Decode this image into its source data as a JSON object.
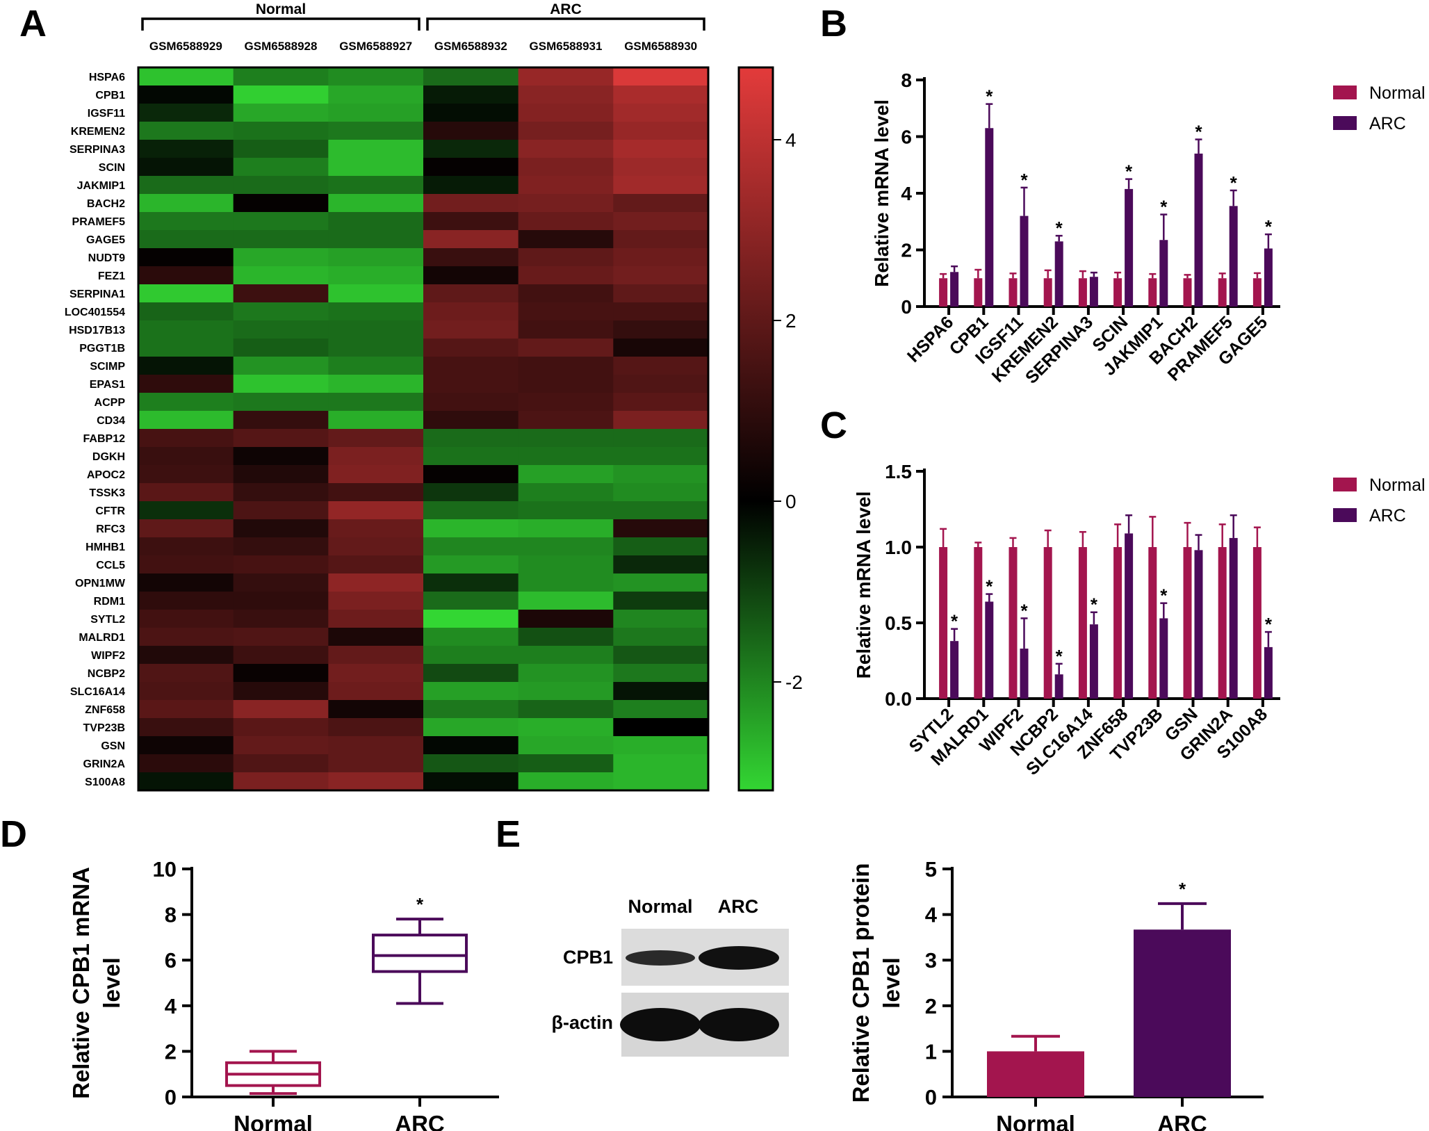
{
  "colors": {
    "normal": "#a3154e",
    "arc": "#4b0a5a",
    "heat_low": "#33d633",
    "heat_mid": "#000000",
    "heat_high": "#e33b3b"
  },
  "chart_data": [
    {
      "panel": "A",
      "type": "heatmap",
      "groups": [
        {
          "label": "Normal",
          "columns": [
            "GSM6588929",
            "GSM6588928",
            "GSM6588927"
          ]
        },
        {
          "label": "ARC",
          "columns": [
            "GSM6588932",
            "GSM6588931",
            "GSM6588930"
          ]
        }
      ],
      "columns": [
        "GSM6588929",
        "GSM6588928",
        "GSM6588927",
        "GSM6588932",
        "GSM6588931",
        "GSM6588930"
      ],
      "rows": [
        "HSPA6",
        "CPB1",
        "IGSF11",
        "KREMEN2",
        "SERPINA3",
        "SCIN",
        "JAKMIP1",
        "BACH2",
        "PRAMEF5",
        "GAGE5",
        "NUDT9",
        "FEZ1",
        "SERPINA1",
        "LOC401554",
        "HSD17B13",
        "PGGT1B",
        "SCIMP",
        "EPAS1",
        "ACPP",
        "CD34",
        "FABP12",
        "DGKH",
        "APOC2",
        "TSSK3",
        "CFTR",
        "RFC3",
        "HMHB1",
        "CCL5",
        "OPN1MW",
        "RDM1",
        "SYTL2",
        "MALRD1",
        "WIPF2",
        "NCBP2",
        "SLC16A14",
        "ZNF658",
        "TVP23B",
        "GSN",
        "GRIN2A",
        "S100A8"
      ],
      "values": [
        [
          -2.9,
          -1.9,
          -2.1,
          -1.6,
          3.2,
          4.6
        ],
        [
          -0.1,
          -3.1,
          -2.5,
          -0.4,
          2.9,
          3.6
        ],
        [
          -0.6,
          -2.5,
          -2.4,
          -0.2,
          2.8,
          3.4
        ],
        [
          -1.8,
          -1.7,
          -1.8,
          0.8,
          2.5,
          3.2
        ],
        [
          -0.5,
          -1.4,
          -2.8,
          -0.6,
          2.9,
          3.5
        ],
        [
          -0.3,
          -1.9,
          -2.8,
          0.1,
          2.6,
          3.3
        ],
        [
          -1.6,
          -1.6,
          -1.7,
          -0.4,
          2.7,
          3.4
        ],
        [
          -2.7,
          0.1,
          -2.7,
          2.4,
          2.5,
          2.1
        ],
        [
          -1.8,
          -1.8,
          -1.6,
          1.3,
          2.2,
          2.4
        ],
        [
          -1.6,
          -1.6,
          -1.6,
          2.9,
          0.8,
          2.1
        ],
        [
          0.1,
          -2.5,
          -2.4,
          1.2,
          2.0,
          2.3
        ],
        [
          0.9,
          -2.7,
          -2.6,
          0.4,
          2.2,
          2.4
        ],
        [
          -3.0,
          1.3,
          -2.9,
          2.0,
          1.4,
          2.0
        ],
        [
          -1.5,
          -1.8,
          -1.7,
          2.3,
          1.5,
          1.5
        ],
        [
          -1.7,
          -1.6,
          -1.6,
          2.4,
          1.4,
          1.1
        ],
        [
          -1.7,
          -1.4,
          -1.6,
          1.8,
          2.1,
          0.5
        ],
        [
          -0.3,
          -2.2,
          -1.9,
          1.5,
          1.4,
          1.8
        ],
        [
          1.0,
          -2.9,
          -2.7,
          1.5,
          1.4,
          1.7
        ],
        [
          -1.9,
          -1.8,
          -1.8,
          1.4,
          1.5,
          1.9
        ],
        [
          -2.8,
          1.1,
          -2.6,
          1.0,
          1.6,
          2.6
        ],
        [
          1.5,
          1.8,
          2.1,
          -1.6,
          -1.6,
          -1.6
        ],
        [
          1.2,
          0.3,
          2.6,
          -1.7,
          -1.7,
          -1.7
        ],
        [
          1.3,
          0.7,
          2.7,
          0.1,
          -2.4,
          -2.2
        ],
        [
          1.9,
          1.1,
          1.4,
          -0.8,
          -1.9,
          -2.1
        ],
        [
          -0.7,
          1.6,
          3.1,
          -1.6,
          -1.7,
          -1.7
        ],
        [
          2.0,
          0.7,
          2.2,
          -2.7,
          -2.6,
          0.8
        ],
        [
          1.3,
          1.1,
          2.1,
          -2.0,
          -2.0,
          -1.4
        ],
        [
          1.4,
          1.5,
          1.8,
          -2.3,
          -2.1,
          -0.6
        ],
        [
          0.4,
          1.1,
          3.0,
          -0.7,
          -2.1,
          -2.2
        ],
        [
          1.0,
          1.0,
          2.6,
          -1.6,
          -2.8,
          -0.9
        ],
        [
          1.4,
          1.2,
          2.3,
          -3.2,
          0.6,
          -2.0
        ],
        [
          1.6,
          1.7,
          0.6,
          -2.1,
          -1.2,
          -1.8
        ],
        [
          0.7,
          1.3,
          2.1,
          -1.9,
          -1.9,
          -1.3
        ],
        [
          1.7,
          0.2,
          2.4,
          -1.1,
          -2.2,
          -1.8
        ],
        [
          1.6,
          0.8,
          2.3,
          -2.4,
          -2.3,
          -0.3
        ],
        [
          1.9,
          2.9,
          0.4,
          -1.8,
          -1.5,
          -1.9
        ],
        [
          1.2,
          1.9,
          1.6,
          -2.5,
          -2.6,
          0.0
        ],
        [
          0.3,
          2.1,
          2.0,
          -0.1,
          -2.5,
          -2.6
        ],
        [
          0.9,
          1.7,
          2.0,
          -1.3,
          -1.4,
          -2.7
        ],
        [
          -0.3,
          2.6,
          2.9,
          -0.2,
          -2.6,
          -2.7
        ]
      ],
      "color_scale": {
        "min": -3.2,
        "max": 4.8,
        "ticks": [
          -2,
          0,
          2,
          4
        ]
      }
    },
    {
      "panel": "B",
      "type": "bar",
      "ylabel": "Relative mRNA level",
      "ylim": [
        0,
        8
      ],
      "yticks": [
        0,
        2,
        4,
        6,
        8
      ],
      "legend": "right",
      "categories": [
        "HSPA6",
        "CPB1",
        "IGSF11",
        "KREMEN2",
        "SERPINA3",
        "SCIN",
        "JAKMIP1",
        "BACH2",
        "PRAMEF5",
        "GAGE5"
      ],
      "series": [
        {
          "name": "Normal",
          "values": [
            1.0,
            1.0,
            1.0,
            1.0,
            1.0,
            1.0,
            1.0,
            1.0,
            1.0,
            1.0
          ],
          "errors": [
            0.15,
            0.3,
            0.17,
            0.28,
            0.25,
            0.2,
            0.15,
            0.12,
            0.17,
            0.18
          ]
        },
        {
          "name": "ARC",
          "values": [
            1.22,
            6.3,
            3.2,
            2.3,
            1.05,
            4.15,
            2.35,
            5.4,
            3.55,
            2.05
          ],
          "errors": [
            0.2,
            0.85,
            1.0,
            0.2,
            0.15,
            0.35,
            0.9,
            0.5,
            0.55,
            0.5
          ]
        }
      ],
      "significant": [
        false,
        true,
        true,
        true,
        false,
        true,
        true,
        true,
        true,
        true
      ],
      "significance_symbol": "*"
    },
    {
      "panel": "C",
      "type": "bar",
      "ylabel": "Relative mRNA level",
      "ylim": [
        0,
        1.5
      ],
      "yticks": [
        "0.0",
        "0.5",
        "1.0",
        "1.5"
      ],
      "legend": "right",
      "categories": [
        "SYTL2",
        "MALRD1",
        "WIPF2",
        "NCBP2",
        "SLC16A14",
        "ZNF658",
        "TVP23B",
        "GSN",
        "GRIN2A",
        "S100A8"
      ],
      "series": [
        {
          "name": "Normal",
          "values": [
            1.0,
            1.0,
            1.0,
            1.0,
            1.0,
            1.0,
            1.0,
            1.0,
            1.0,
            1.0
          ],
          "errors": [
            0.12,
            0.03,
            0.06,
            0.11,
            0.1,
            0.15,
            0.2,
            0.16,
            0.15,
            0.13
          ]
        },
        {
          "name": "ARC",
          "values": [
            0.38,
            0.64,
            0.33,
            0.16,
            0.49,
            1.09,
            0.53,
            0.98,
            1.06,
            0.34
          ],
          "errors": [
            0.08,
            0.05,
            0.2,
            0.07,
            0.08,
            0.12,
            0.1,
            0.1,
            0.15,
            0.1
          ]
        }
      ],
      "significant": [
        true,
        true,
        true,
        true,
        true,
        false,
        true,
        false,
        false,
        true
      ],
      "significance_symbol": "*"
    },
    {
      "panel": "D",
      "type": "box",
      "ylabel": "Relative CPB1 mRNA level",
      "ylim": [
        0,
        10
      ],
      "yticks": [
        0,
        2,
        4,
        6,
        8,
        10
      ],
      "categories": [
        "Normal",
        "ARC"
      ],
      "boxes": [
        {
          "name": "Normal",
          "min": 0.15,
          "q1": 0.5,
          "median": 1.0,
          "q3": 1.5,
          "max": 2.0
        },
        {
          "name": "ARC",
          "min": 4.1,
          "q1": 5.5,
          "median": 6.2,
          "q3": 7.1,
          "max": 7.8
        }
      ],
      "significant": [
        false,
        true
      ],
      "significance_symbol": "*"
    },
    {
      "panel": "E",
      "type": "bar",
      "ylabel": "Relative CPB1 protein level",
      "ylim": [
        0,
        5
      ],
      "yticks": [
        0,
        1,
        2,
        3,
        4,
        5
      ],
      "categories": [
        "Normal",
        "ARC"
      ],
      "values": [
        1.0,
        3.67
      ],
      "errors": [
        0.33,
        0.57
      ],
      "significant": [
        false,
        true
      ],
      "significance_symbol": "*"
    }
  ],
  "panels": {
    "a": "A",
    "b": "B",
    "c": "C",
    "d": "D",
    "e": "E"
  },
  "blot": {
    "lanes": [
      "Normal",
      "ARC"
    ],
    "rows": [
      "CPB1",
      "β-actin"
    ]
  }
}
